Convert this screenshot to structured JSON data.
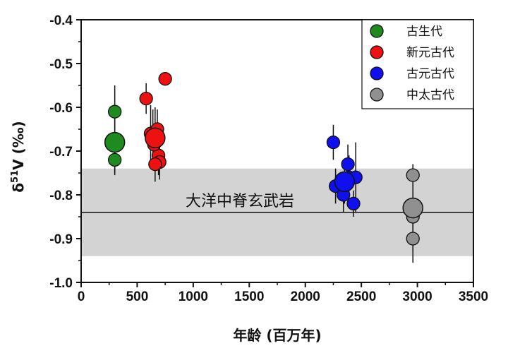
{
  "chart_data": {
    "type": "scatter",
    "xlabel": "年龄 (百万年)",
    "ylabel_main": "δ",
    "ylabel_sup": "51",
    "ylabel_rest": "V (‰)",
    "xlim": [
      0,
      3500
    ],
    "ylim": [
      -1.0,
      -0.4
    ],
    "xticks": [
      0,
      500,
      1000,
      1500,
      2000,
      2500,
      3000,
      3500
    ],
    "yticks": [
      -1.0,
      -0.9,
      -0.8,
      -0.7,
      -0.6,
      -0.5,
      -0.4
    ],
    "ytick_labels": [
      "-1.0",
      "-0.9",
      "-0.8",
      "-0.7",
      "-0.6",
      "-0.5",
      "-0.4"
    ],
    "grid": false,
    "legend_position": "top-right",
    "band": {
      "label": "大洋中脊玄武岩",
      "y_center": -0.84,
      "y_low": -0.94,
      "y_high": -0.74,
      "color": "#d3d3d3"
    },
    "series": [
      {
        "name": "古生代",
        "color": "#1f8a1f",
        "points": [
          {
            "x": 300,
            "y": -0.61,
            "err": 0.06
          },
          {
            "x": 300,
            "y": -0.72,
            "err": 0.035
          }
        ],
        "mean": {
          "x": 300,
          "y": -0.68,
          "err": 0.07
        }
      },
      {
        "name": "新元古代",
        "color": "#ee1111",
        "points": [
          {
            "x": 580,
            "y": -0.58,
            "err": 0.035
          },
          {
            "x": 750,
            "y": -0.535,
            "err": 0
          },
          {
            "x": 620,
            "y": -0.66,
            "err": 0.065
          },
          {
            "x": 640,
            "y": -0.665,
            "err": 0.06
          },
          {
            "x": 680,
            "y": -0.65,
            "err": 0.045
          },
          {
            "x": 690,
            "y": -0.71,
            "err": 0.045
          },
          {
            "x": 700,
            "y": -0.725,
            "err": 0.04
          },
          {
            "x": 660,
            "y": -0.73,
            "err": 0.04
          },
          {
            "x": 650,
            "y": -0.685,
            "err": 0.045
          }
        ],
        "mean": {
          "x": 660,
          "y": -0.67,
          "err": 0.07
        }
      },
      {
        "name": "古元古代",
        "color": "#1010ee",
        "points": [
          {
            "x": 2250,
            "y": -0.68,
            "err": 0.04
          },
          {
            "x": 2270,
            "y": -0.78,
            "err": 0.04
          },
          {
            "x": 2340,
            "y": -0.8,
            "err": 0.04
          },
          {
            "x": 2380,
            "y": -0.73,
            "err": 0.045
          },
          {
            "x": 2390,
            "y": -0.76,
            "err": 0.05
          },
          {
            "x": 2430,
            "y": -0.82,
            "err": 0.03
          },
          {
            "x": 2450,
            "y": -0.76,
            "err": 0.08
          }
        ],
        "mean": {
          "x": 2350,
          "y": -0.77,
          "err": 0.05
        }
      },
      {
        "name": "中太古代",
        "color": "#909090",
        "points": [
          {
            "x": 2960,
            "y": -0.755,
            "err": 0.025
          },
          {
            "x": 2960,
            "y": -0.85,
            "err": 0.03
          },
          {
            "x": 2960,
            "y": -0.9,
            "err": 0.055
          }
        ],
        "mean": {
          "x": 2960,
          "y": -0.83,
          "err": 0.1
        }
      }
    ]
  }
}
